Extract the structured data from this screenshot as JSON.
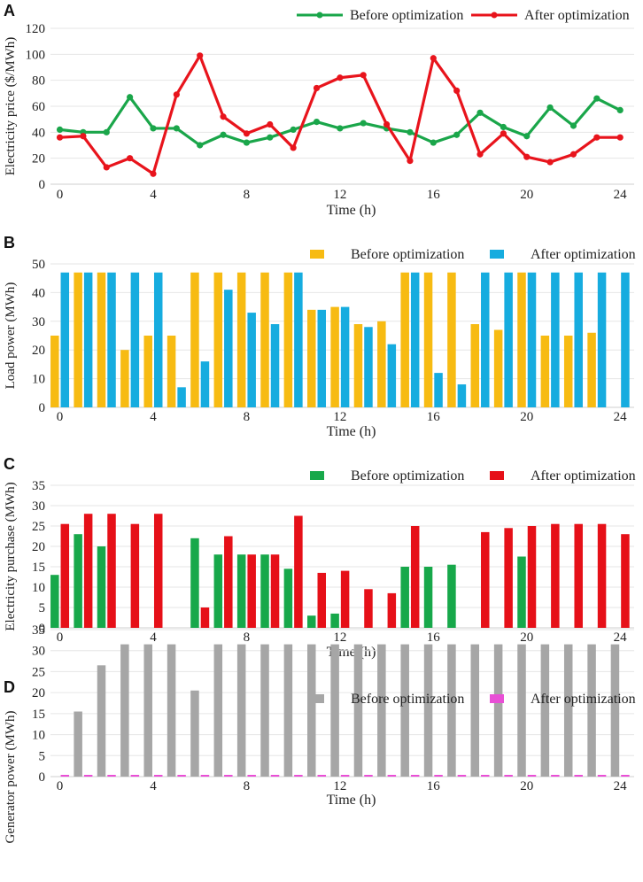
{
  "figure": {
    "background": "#ffffff"
  },
  "chart_data": [
    {
      "panel_label": "A",
      "type": "line",
      "xlabel": "Time  (h)",
      "ylabel": "Electricity price ($/MWh)",
      "xlim": [
        -0.4,
        24.6
      ],
      "ylim": [
        0,
        120
      ],
      "xticks": [
        0,
        4,
        8,
        12,
        16,
        20,
        24
      ],
      "yticks": [
        0,
        20,
        40,
        60,
        80,
        100,
        120
      ],
      "x": [
        0,
        1,
        2,
        3,
        4,
        5,
        6,
        7,
        8,
        9,
        10,
        11,
        12,
        13,
        14,
        15,
        16,
        17,
        18,
        19,
        20,
        21,
        22,
        23,
        24
      ],
      "series": [
        {
          "name": "Before optimization",
          "color": "#1aa64a",
          "values": [
            42,
            40,
            40,
            67,
            43,
            43,
            30,
            38,
            32,
            36,
            42,
            48,
            43,
            47,
            43,
            40,
            32,
            38,
            55,
            44,
            37,
            59,
            45,
            66,
            57
          ]
        },
        {
          "name": "After optimization",
          "color": "#e8141c",
          "values": [
            36,
            37,
            13,
            20,
            8,
            69,
            99,
            52,
            39,
            46,
            28,
            74,
            82,
            84,
            46,
            18,
            97,
            72,
            23,
            39,
            21,
            17,
            23,
            36,
            36
          ]
        }
      ],
      "legend": "top-right"
    },
    {
      "panel_label": "B",
      "type": "bar",
      "xlabel": "Time  (h)",
      "ylabel": "Load power  (MWh)",
      "xlim": [
        -0.4,
        24.6
      ],
      "ylim": [
        0,
        50
      ],
      "xticks": [
        0,
        4,
        8,
        12,
        16,
        20,
        24
      ],
      "yticks": [
        0,
        10,
        20,
        30,
        40,
        50
      ],
      "x": [
        0,
        1,
        2,
        3,
        4,
        5,
        6,
        7,
        8,
        9,
        10,
        11,
        12,
        13,
        14,
        15,
        16,
        17,
        18,
        19,
        20,
        21,
        22,
        23,
        24
      ],
      "series": [
        {
          "name": "Before optimization",
          "color": "#f7bb12",
          "values": [
            25,
            47,
            47,
            20,
            25,
            25,
            47,
            47,
            47,
            47,
            47,
            34,
            35,
            29,
            30,
            47,
            47,
            47,
            29,
            27,
            47,
            25,
            25,
            26,
            0
          ]
        },
        {
          "name": "After optimization",
          "color": "#16acdf",
          "values": [
            47,
            47,
            47,
            47,
            47,
            7,
            16,
            41,
            33,
            29,
            47,
            34,
            35,
            28,
            22,
            47,
            12,
            8,
            47,
            47,
            47,
            47,
            47,
            47,
            47
          ]
        }
      ],
      "legend": "top-right"
    },
    {
      "panel_label": "C",
      "type": "bar",
      "xlabel": "Time  (h)",
      "ylabel": "Electricity purchase (MWh)",
      "xlim": [
        -0.4,
        24.6
      ],
      "ylim": [
        0,
        35
      ],
      "xticks": [
        0,
        4,
        8,
        12,
        16,
        20,
        24
      ],
      "yticks": [
        0,
        5,
        10,
        15,
        20,
        25,
        30,
        35
      ],
      "x": [
        0,
        1,
        2,
        3,
        4,
        5,
        6,
        7,
        8,
        9,
        10,
        11,
        12,
        13,
        14,
        15,
        16,
        17,
        18,
        19,
        20,
        21,
        22,
        23,
        24
      ],
      "series": [
        {
          "name": "Before optimization",
          "color": "#17a84a",
          "values": [
            13,
            23,
            20,
            0,
            0,
            0,
            22,
            18,
            18,
            18,
            14.5,
            3,
            3.5,
            0,
            0,
            15,
            15,
            15.5,
            0,
            0,
            17.5,
            0,
            0,
            0,
            0
          ]
        },
        {
          "name": "After optimization",
          "color": "#e61018",
          "values": [
            25.5,
            28,
            28,
            25.5,
            28,
            0,
            5,
            22.5,
            18,
            18,
            27.5,
            13.5,
            14,
            9.5,
            8.5,
            25,
            0,
            0,
            23.5,
            24.5,
            25,
            25.5,
            25.5,
            25.5,
            23
          ]
        }
      ],
      "legend": "top-right"
    },
    {
      "panel_label": "D",
      "type": "bar",
      "xlabel": "Time  (h)",
      "ylabel": "Generator power (MWh)",
      "xlim": [
        -0.4,
        24.6
      ],
      "ylim": [
        0,
        35
      ],
      "xticks": [
        0,
        4,
        8,
        12,
        16,
        20,
        24
      ],
      "yticks": [
        0,
        5,
        10,
        15,
        20,
        25,
        30,
        35
      ],
      "x": [
        0,
        1,
        2,
        3,
        4,
        5,
        6,
        7,
        8,
        9,
        10,
        11,
        12,
        13,
        14,
        15,
        16,
        17,
        18,
        19,
        20,
        21,
        22,
        23,
        24
      ],
      "series": [
        {
          "name": "Before optimization",
          "color": "#a6a6a6",
          "values": [
            0,
            15.5,
            26.5,
            31.5,
            31.5,
            31.5,
            20.5,
            31.5,
            31.5,
            31.5,
            31.5,
            31.5,
            31.5,
            31.5,
            31.5,
            31.5,
            31.5,
            31.5,
            31.5,
            31.5,
            31.5,
            31.5,
            31.5,
            31.5,
            31.5
          ]
        },
        {
          "name": "After optimization",
          "color": "#e94fd6",
          "values": [
            0,
            0,
            0,
            0,
            0,
            0,
            0,
            0,
            0,
            0,
            0,
            0,
            0,
            0,
            0,
            0,
            0,
            0,
            0,
            0,
            0,
            0,
            0,
            0,
            0
          ]
        }
      ],
      "legend": "top-right"
    }
  ]
}
